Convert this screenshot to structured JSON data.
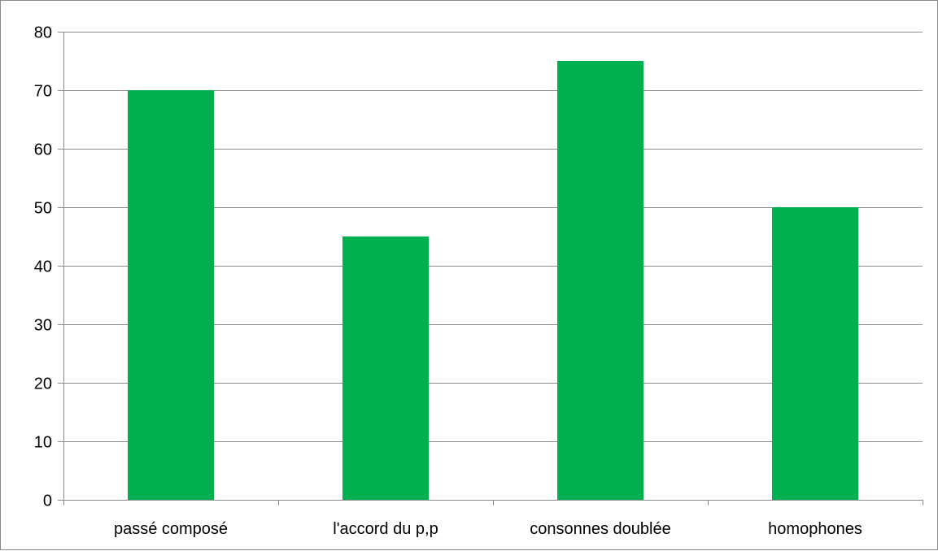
{
  "chart_data": {
    "type": "bar",
    "title": "",
    "xlabel": "",
    "ylabel": "",
    "categories": [
      "passé composé",
      "l'accord du p,p",
      "consonnes doublée",
      "homophones"
    ],
    "values": [
      70,
      45,
      75,
      50
    ],
    "ylim": [
      0,
      80
    ],
    "yticks": [
      0,
      10,
      20,
      30,
      40,
      50,
      60,
      70,
      80
    ],
    "grid": true,
    "legend": "none",
    "colors": {
      "bar": "#00b050",
      "grid": "#8c8c8c",
      "axis": "#8c8c8c",
      "text": "#000000"
    }
  }
}
